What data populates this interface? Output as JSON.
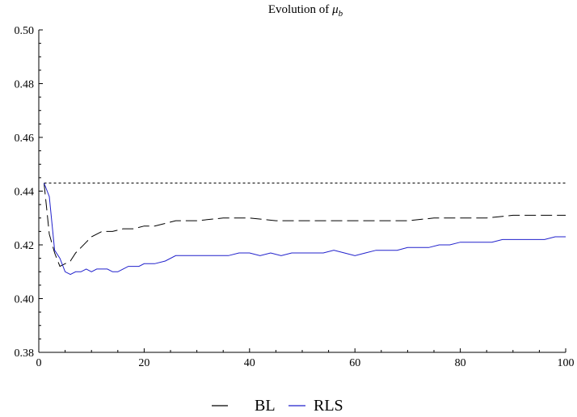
{
  "chart_data": {
    "type": "line",
    "title": "Evolution of ",
    "title_symbol": "μ",
    "title_subscript": "b",
    "xlabel": "",
    "ylabel": "",
    "xlim": [
      0,
      100
    ],
    "ylim": [
      0.38,
      0.5
    ],
    "x_ticks": [
      0,
      20,
      40,
      60,
      80,
      100
    ],
    "x_tick_labels": [
      "0",
      "20",
      "40",
      "60",
      "80",
      "100"
    ],
    "y_ticks": [
      0.38,
      0.4,
      0.42,
      0.44,
      0.46,
      0.48,
      0.5
    ],
    "y_tick_labels": [
      "0.38",
      "0.40",
      "0.42",
      "0.44",
      "0.46",
      "0.48",
      "0.50"
    ],
    "grid": false,
    "legend_position": "bottom-center",
    "reference_line": {
      "y": 0.443,
      "style": "dotted",
      "color": "#000000"
    },
    "series": [
      {
        "name": "BL",
        "color": "#000000",
        "style": "dashed",
        "x": [
          1,
          2,
          3,
          4,
          5,
          6,
          7,
          8,
          9,
          10,
          12,
          14,
          16,
          18,
          20,
          22,
          24,
          26,
          28,
          30,
          35,
          40,
          45,
          50,
          55,
          60,
          65,
          70,
          75,
          80,
          85,
          90,
          95,
          100
        ],
        "values": [
          0.443,
          0.424,
          0.417,
          0.412,
          0.413,
          0.414,
          0.417,
          0.419,
          0.421,
          0.423,
          0.425,
          0.425,
          0.426,
          0.426,
          0.427,
          0.427,
          0.428,
          0.429,
          0.429,
          0.429,
          0.43,
          0.43,
          0.429,
          0.429,
          0.429,
          0.429,
          0.429,
          0.429,
          0.43,
          0.43,
          0.43,
          0.431,
          0.431,
          0.431
        ]
      },
      {
        "name": "RLS",
        "color": "#2121cc",
        "style": "solid",
        "x": [
          1,
          2,
          3,
          4,
          5,
          6,
          7,
          8,
          9,
          10,
          11,
          12,
          13,
          14,
          15,
          16,
          17,
          18,
          19,
          20,
          22,
          24,
          26,
          28,
          30,
          32,
          34,
          36,
          38,
          40,
          42,
          44,
          46,
          48,
          50,
          52,
          54,
          56,
          58,
          60,
          62,
          64,
          66,
          68,
          70,
          72,
          74,
          76,
          78,
          80,
          82,
          84,
          86,
          88,
          90,
          92,
          94,
          96,
          98,
          100
        ],
        "values": [
          0.443,
          0.438,
          0.418,
          0.415,
          0.41,
          0.409,
          0.41,
          0.41,
          0.411,
          0.41,
          0.411,
          0.411,
          0.411,
          0.41,
          0.41,
          0.411,
          0.412,
          0.412,
          0.412,
          0.413,
          0.413,
          0.414,
          0.416,
          0.416,
          0.416,
          0.416,
          0.416,
          0.416,
          0.417,
          0.417,
          0.416,
          0.417,
          0.416,
          0.417,
          0.417,
          0.417,
          0.417,
          0.418,
          0.417,
          0.416,
          0.417,
          0.418,
          0.418,
          0.418,
          0.419,
          0.419,
          0.419,
          0.42,
          0.42,
          0.421,
          0.421,
          0.421,
          0.421,
          0.422,
          0.422,
          0.422,
          0.422,
          0.422,
          0.423,
          0.423
        ]
      }
    ]
  }
}
